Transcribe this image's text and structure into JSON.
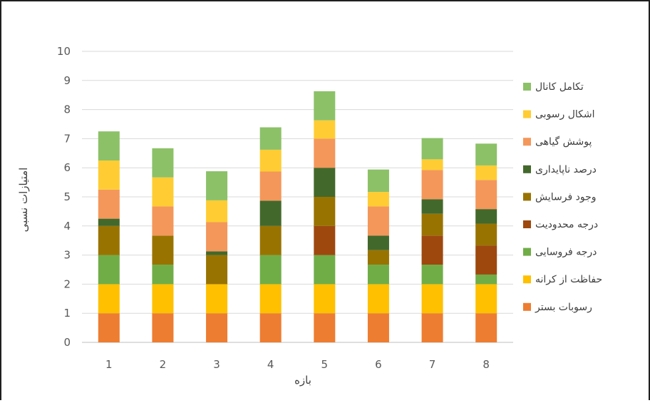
{
  "chart_data": {
    "type": "bar",
    "stacked": true,
    "categories": [
      "1",
      "2",
      "3",
      "4",
      "5",
      "6",
      "7",
      "8"
    ],
    "xlabel": "بازه",
    "ylabel": "امتیازات نسبی",
    "ylim": [
      0,
      10
    ],
    "yticks": [
      "0",
      "1",
      "2",
      "3",
      "4",
      "5",
      "6",
      "7",
      "8",
      "9",
      "10"
    ],
    "grid": true,
    "legend_position": "right",
    "series": [
      {
        "name": "رسوبات بستر",
        "color": "#ED7D31",
        "values": [
          1,
          1,
          1,
          1,
          1,
          1,
          1,
          1
        ]
      },
      {
        "name": "حفاظت از کرانه",
        "color": "#FFC000",
        "values": [
          1,
          1,
          1,
          1,
          1,
          1,
          1,
          1
        ]
      },
      {
        "name": "درجه فروسایی",
        "color": "#70AD47",
        "values": [
          1,
          0.67,
          0,
          1,
          1,
          0.67,
          0.67,
          0.33
        ]
      },
      {
        "name": "درجه محدودیت",
        "color": "#9E480E",
        "values": [
          0,
          0,
          0,
          0,
          1,
          0,
          1,
          1
        ]
      },
      {
        "name": "وجود فرسایش",
        "color": "#997300",
        "values": [
          1,
          1,
          1,
          1,
          1,
          0.5,
          0.75,
          0.75
        ]
      },
      {
        "name": "درصد ناپایداری",
        "color": "#43682B",
        "values": [
          0.25,
          0,
          0.13,
          0.87,
          1,
          0.5,
          0.5,
          0.5
        ]
      },
      {
        "name": "پوشش گیاهی",
        "color": "#F4975A",
        "values": [
          1,
          1,
          1,
          1,
          1,
          1,
          1,
          1
        ]
      },
      {
        "name": "اشکال رسوبی",
        "color": "#FFCD33",
        "values": [
          1,
          1,
          0.75,
          0.75,
          0.63,
          0.5,
          0.37,
          0.5
        ]
      },
      {
        "name": "تکامل کانال",
        "color": "#8CC168",
        "values": [
          1,
          1,
          1,
          0.77,
          1,
          0.77,
          0.73,
          0.75
        ]
      }
    ]
  }
}
